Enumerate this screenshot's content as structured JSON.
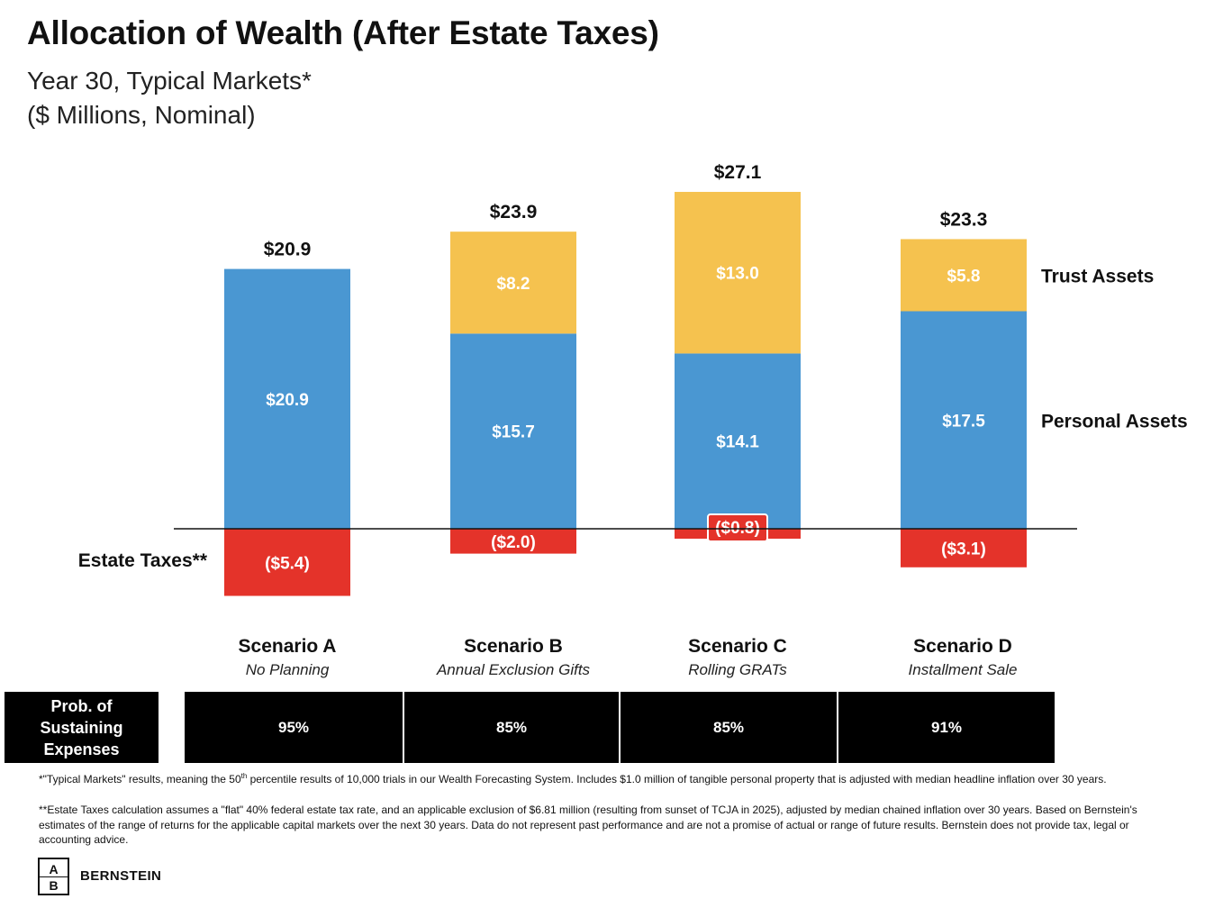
{
  "title": "Allocation of Wealth (After Estate Taxes)",
  "subtitle_line1": "Year 30, Typical Markets*",
  "subtitle_line2": "($ Millions, Nominal)",
  "colors": {
    "personal_assets": "#4A97D2",
    "trust_assets": "#F5C24F",
    "estate_taxes": "#E4332A"
  },
  "chart_data": {
    "type": "bar",
    "stacked": true,
    "categories": [
      "Scenario A",
      "Scenario B",
      "Scenario C",
      "Scenario D"
    ],
    "series": [
      {
        "name": "Personal Assets",
        "values": [
          20.9,
          15.7,
          14.1,
          17.5
        ],
        "labels": [
          "$20.9",
          "$15.7",
          "$14.1",
          "$17.5"
        ]
      },
      {
        "name": "Trust Assets",
        "values": [
          0,
          8.2,
          13.0,
          5.8
        ],
        "labels": [
          "",
          "$8.2",
          "$13.0",
          "$5.8"
        ]
      },
      {
        "name": "Estate Taxes**",
        "values": [
          -5.4,
          -2.0,
          -0.8,
          -3.1
        ],
        "labels": [
          "($5.4)",
          "($2.0)",
          "($0.8)",
          "($3.1)"
        ]
      }
    ],
    "totals": [
      20.9,
      23.9,
      27.1,
      23.3
    ],
    "total_labels": [
      "$20.9",
      "$23.9",
      "$27.1",
      "$23.3"
    ],
    "legend_placement": "right",
    "grid": false,
    "ylim": [
      -5.4,
      27.1
    ]
  },
  "scenarios": [
    {
      "name": "Scenario A",
      "desc": "No Planning",
      "prob": "95%"
    },
    {
      "name": "Scenario B",
      "desc": "Annual Exclusion Gifts",
      "prob": "85%"
    },
    {
      "name": "Scenario C",
      "desc": "Rolling GRATs",
      "prob": "85%"
    },
    {
      "name": "Scenario D",
      "desc": "Installment Sale",
      "prob": "91%"
    }
  ],
  "prob_label_line1": "Prob. of",
  "prob_label_line2": "Sustaining",
  "prob_label_line3": "Expenses",
  "footnote1_a": "*\"Typical Markets\" results, meaning the 50",
  "footnote1_sup": "th",
  "footnote1_b": " percentile results of 10,000 trials in our Wealth Forecasting System. Includes $1.0 million of tangible personal property that is adjusted with median headline inflation over 30 years.",
  "footnote2": "**Estate Taxes calculation assumes a \"flat\" 40% federal estate tax rate, and an applicable exclusion of $6.81 million (resulting from sunset of TCJA in 2025), adjusted by median chained inflation over 30 years. Based on Bernstein's estimates of the range of returns for the applicable capital markets over the next 30 years. Data do not represent past performance and are not a promise of actual or range of future results. Bernstein does not provide tax, legal or accounting advice.",
  "logo": {
    "top": "A",
    "bottom": "B",
    "name": "BERNSTEIN"
  }
}
